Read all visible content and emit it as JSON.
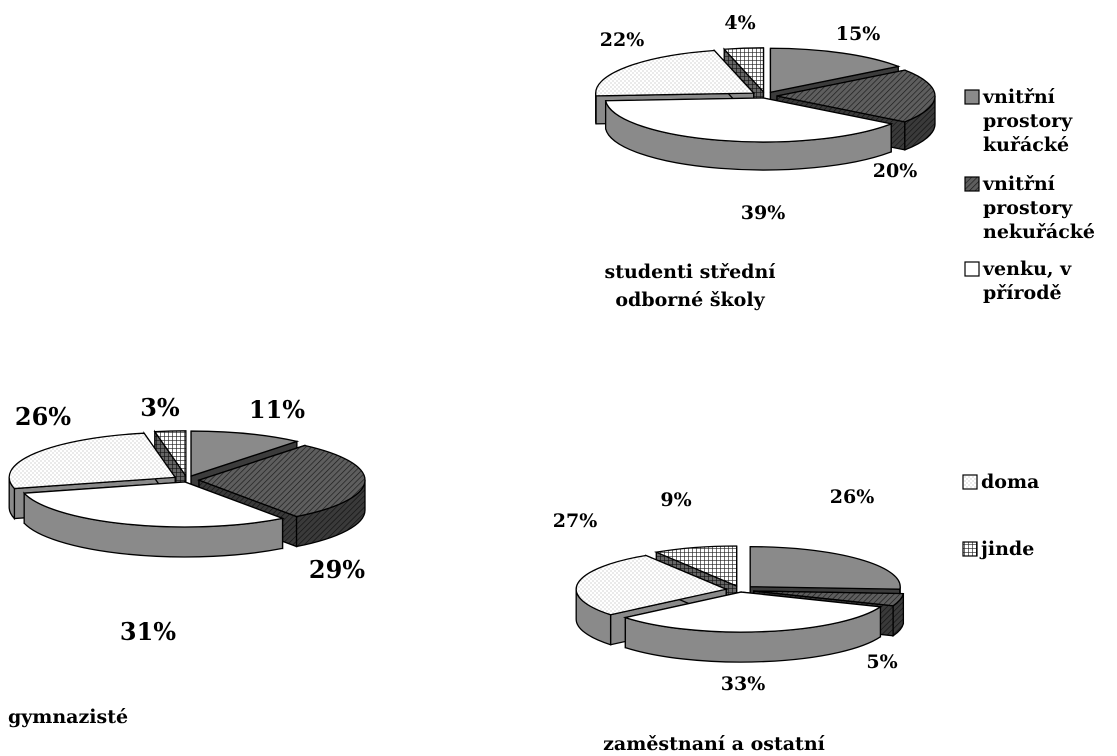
{
  "legend_categories": [
    "vnitřní prostory kuřácké",
    "vnitřní prostory nekuřácké",
    "venku, v přírodě",
    "doma",
    "jinde"
  ],
  "colors": {
    "vnitřní prostory kuřácké": "#8a8a8a",
    "vnitřní prostory nekuřácké": "#5e5e5e",
    "venku, v přírodě": "#ffffff",
    "doma": "#f2f2f2",
    "jinde": "#a8a8a8"
  },
  "chart_data": [
    {
      "type": "pie",
      "title": "studenti střední odborné školy",
      "categories": [
        "vnitřní prostory kuřácké",
        "vnitřní prostory nekuřácké",
        "venku, v přírodě",
        "doma",
        "jinde"
      ],
      "values": [
        15,
        20,
        39,
        22,
        4
      ],
      "labels": [
        "15%",
        "20%",
        "39%",
        "22%",
        "4%"
      ],
      "style": "3d-exploded"
    },
    {
      "type": "pie",
      "title": "gymnazisté",
      "categories": [
        "vnitřní prostory kuřácké",
        "vnitřní prostory nekuřácké",
        "venku, v přírodě",
        "doma",
        "jinde"
      ],
      "values": [
        11,
        29,
        31,
        26,
        3
      ],
      "labels": [
        "11%",
        "29%",
        "31%",
        "26%",
        "3%"
      ],
      "style": "3d-exploded"
    },
    {
      "type": "pie",
      "title": "zaměstnaní a ostatní",
      "categories": [
        "vnitřní prostory kuřácké",
        "vnitřní prostory nekuřácké",
        "venku, v přírodě",
        "doma",
        "jinde"
      ],
      "values": [
        26,
        5,
        33,
        27,
        9
      ],
      "labels": [
        "26%",
        "5%",
        "33%",
        "27%",
        "9%"
      ],
      "style": "3d-exploded"
    }
  ]
}
